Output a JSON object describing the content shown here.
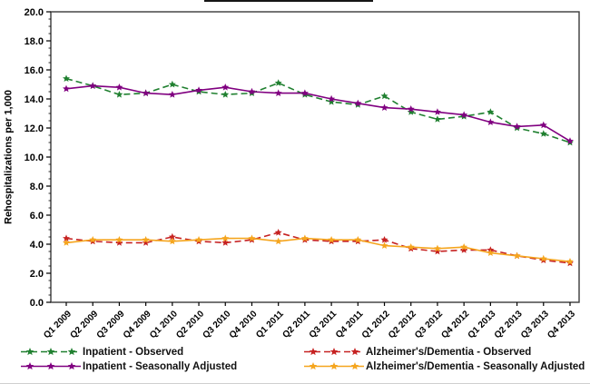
{
  "chart_data": {
    "type": "line",
    "title": "",
    "xlabel": "",
    "ylabel": "Rehospitalizations per 1,000",
    "ylim": [
      0,
      20
    ],
    "ytick_step": 2,
    "ytick_decimals": 1,
    "grid": false,
    "legend_position": "bottom",
    "categories": [
      "Q1 2009",
      "Q2 2009",
      "Q3 2009",
      "Q4 2009",
      "Q1 2010",
      "Q2 2010",
      "Q3 2010",
      "Q4 2010",
      "Q1 2011",
      "Q2 2011",
      "Q3 2011",
      "Q4 2011",
      "Q1 2012",
      "Q2 2012",
      "Q3 2012",
      "Q4 2012",
      "Q1 2013",
      "Q2 2013",
      "Q3 2013",
      "Q4 2013"
    ],
    "series": [
      {
        "name": "Inpatient - Observed",
        "color": "#208030",
        "style": "dashed",
        "marker": "star",
        "values": [
          15.4,
          14.9,
          14.3,
          14.4,
          15.0,
          14.5,
          14.3,
          14.4,
          15.1,
          14.3,
          13.8,
          13.6,
          14.2,
          13.1,
          12.6,
          12.8,
          13.1,
          12.0,
          11.6,
          11.0
        ]
      },
      {
        "name": "Inpatient - Seasonally Adjusted",
        "color": "#800080",
        "style": "solid",
        "marker": "star",
        "values": [
          14.7,
          14.9,
          14.8,
          14.4,
          14.3,
          14.6,
          14.8,
          14.5,
          14.4,
          14.4,
          14.0,
          13.7,
          13.4,
          13.3,
          13.1,
          12.9,
          12.4,
          12.1,
          12.2,
          11.1
        ]
      },
      {
        "name": "Alzheimer's/Dementia - Observed",
        "color": "#C62222",
        "style": "dashed",
        "marker": "star",
        "values": [
          4.4,
          4.2,
          4.1,
          4.1,
          4.5,
          4.2,
          4.1,
          4.3,
          4.8,
          4.3,
          4.2,
          4.2,
          4.3,
          3.7,
          3.5,
          3.6,
          3.6,
          3.2,
          2.9,
          2.7
        ]
      },
      {
        "name": "Alzheimer's/Dementia - Seasonally Adjusted",
        "color": "#F5A51E",
        "style": "solid",
        "marker": "star",
        "values": [
          4.1,
          4.3,
          4.3,
          4.3,
          4.2,
          4.3,
          4.4,
          4.4,
          4.2,
          4.4,
          4.3,
          4.3,
          3.9,
          3.8,
          3.7,
          3.8,
          3.4,
          3.2,
          3.0,
          2.8
        ]
      }
    ],
    "legend_display_order": [
      0,
      2,
      1,
      3
    ]
  }
}
